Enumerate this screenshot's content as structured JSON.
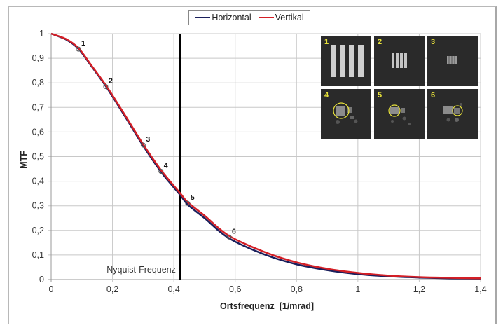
{
  "legend": {
    "items": [
      {
        "label": "Horizontal",
        "color": "#1a1f5c"
      },
      {
        "label": "Vertikal",
        "color": "#d41f26"
      }
    ]
  },
  "chart_data": {
    "type": "line",
    "title": "",
    "xlabel": "Ortsfrequenz  [1/mrad]",
    "ylabel": "MTF",
    "xlim": [
      0,
      1.4
    ],
    "ylim": [
      0,
      1
    ],
    "x_ticks": [
      "0",
      "0,2",
      "0,4",
      "0,6",
      "0,8",
      "1",
      "1,2",
      "1,4"
    ],
    "y_ticks": [
      "0",
      "0,1",
      "0,2",
      "0,3",
      "0,4",
      "0,5",
      "0,6",
      "0,7",
      "0,8",
      "0,9",
      "1"
    ],
    "grid": true,
    "legend_position": "top",
    "series": [
      {
        "name": "Horizontal",
        "color": "#1a1f5c",
        "x": [
          0,
          0.05,
          0.09,
          0.13,
          0.18,
          0.24,
          0.3,
          0.36,
          0.42,
          0.445,
          0.5,
          0.58,
          0.7,
          0.8,
          0.9,
          1.0,
          1.1,
          1.2,
          1.3,
          1.4
        ],
        "y": [
          1.0,
          0.975,
          0.937,
          0.87,
          0.783,
          0.665,
          0.544,
          0.435,
          0.345,
          0.305,
          0.25,
          0.168,
          0.1,
          0.062,
          0.038,
          0.022,
          0.013,
          0.008,
          0.005,
          0.004
        ]
      },
      {
        "name": "Vertikal",
        "color": "#d41f26",
        "x": [
          0,
          0.05,
          0.09,
          0.13,
          0.18,
          0.24,
          0.3,
          0.36,
          0.42,
          0.445,
          0.5,
          0.58,
          0.7,
          0.8,
          0.9,
          1.0,
          1.1,
          1.2,
          1.3,
          1.4
        ],
        "y": [
          1.0,
          0.977,
          0.94,
          0.873,
          0.787,
          0.67,
          0.55,
          0.442,
          0.352,
          0.315,
          0.26,
          0.178,
          0.11,
          0.07,
          0.044,
          0.027,
          0.016,
          0.01,
          0.007,
          0.005
        ]
      }
    ],
    "marked_points": [
      {
        "label": "1",
        "x": 0.089,
        "y": 0.937
      },
      {
        "label": "2",
        "x": 0.178,
        "y": 0.785
      },
      {
        "label": "3",
        "x": 0.3,
        "y": 0.547
      },
      {
        "label": "4",
        "x": 0.358,
        "y": 0.44
      },
      {
        "label": "5",
        "x": 0.445,
        "y": 0.31
      },
      {
        "label": "6",
        "x": 0.58,
        "y": 0.173
      }
    ],
    "annotations": [
      {
        "type": "vline",
        "x": 0.42,
        "label": "Nyquist-Frequenz",
        "color": "#000000"
      }
    ]
  },
  "thumbnails": [
    {
      "label": "1",
      "bars": 4,
      "size": "large"
    },
    {
      "label": "2",
      "bars": 4,
      "size": "medium"
    },
    {
      "label": "3",
      "bars": 4,
      "size": "small"
    },
    {
      "label": "4",
      "circled": true
    },
    {
      "label": "5",
      "circled": true
    },
    {
      "label": "6",
      "circled": true
    }
  ]
}
